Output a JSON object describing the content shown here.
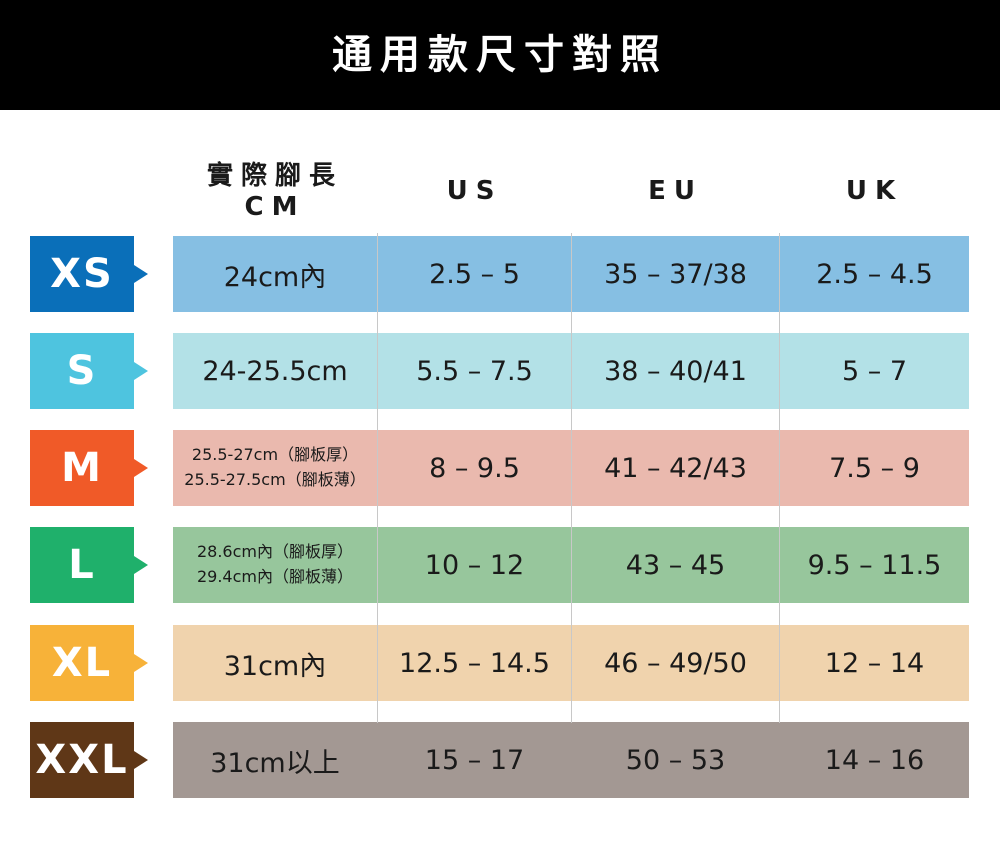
{
  "title": "通用款尺寸對照",
  "headers": {
    "cm_line1": "實際腳長",
    "cm_line2": "CM",
    "us": "US",
    "eu": "EU",
    "uk": "UK"
  },
  "rows": [
    {
      "size": "XS",
      "color": "#0a6fb9",
      "band": "#86bfe3",
      "cm": [
        "24cm內"
      ],
      "us": "2.5  – 5",
      "eu": "35 – 37/38",
      "uk": "2.5 – 4.5"
    },
    {
      "size": "S",
      "color": "#4ec4df",
      "band": "#b3e1e7",
      "cm": [
        "24-25.5cm"
      ],
      "us": "5.5 – 7.5",
      "eu": "38 – 40/41",
      "uk": "5 – 7"
    },
    {
      "size": "M",
      "color": "#f05a28",
      "band": "#eab9ae",
      "cm": [
        "25.5-27cm（腳板厚）",
        "25.5-27.5cm（腳板薄）"
      ],
      "us": "8 – 9.5",
      "eu": "41 – 42/43",
      "uk": "7.5 – 9"
    },
    {
      "size": "L",
      "color": "#1fb06b",
      "band": "#97c69c",
      "cm": [
        "28.6cm內（腳板厚）",
        "29.4cm內（腳板薄）"
      ],
      "us": "10 – 12",
      "eu": "43 – 45",
      "uk": "9.5 – 11.5"
    },
    {
      "size": "XL",
      "color": "#f7b239",
      "band": "#f0d3ad",
      "cm": [
        "31cm內"
      ],
      "us": "12.5 – 14.5",
      "eu": "46 – 49/50",
      "uk": "12 – 14"
    },
    {
      "size": "XXL",
      "color": "#5f3717",
      "band": "#a39893",
      "cm": [
        "31cm以上"
      ],
      "us": "15 – 17",
      "eu": "50 – 53",
      "uk": "14 – 16"
    }
  ]
}
